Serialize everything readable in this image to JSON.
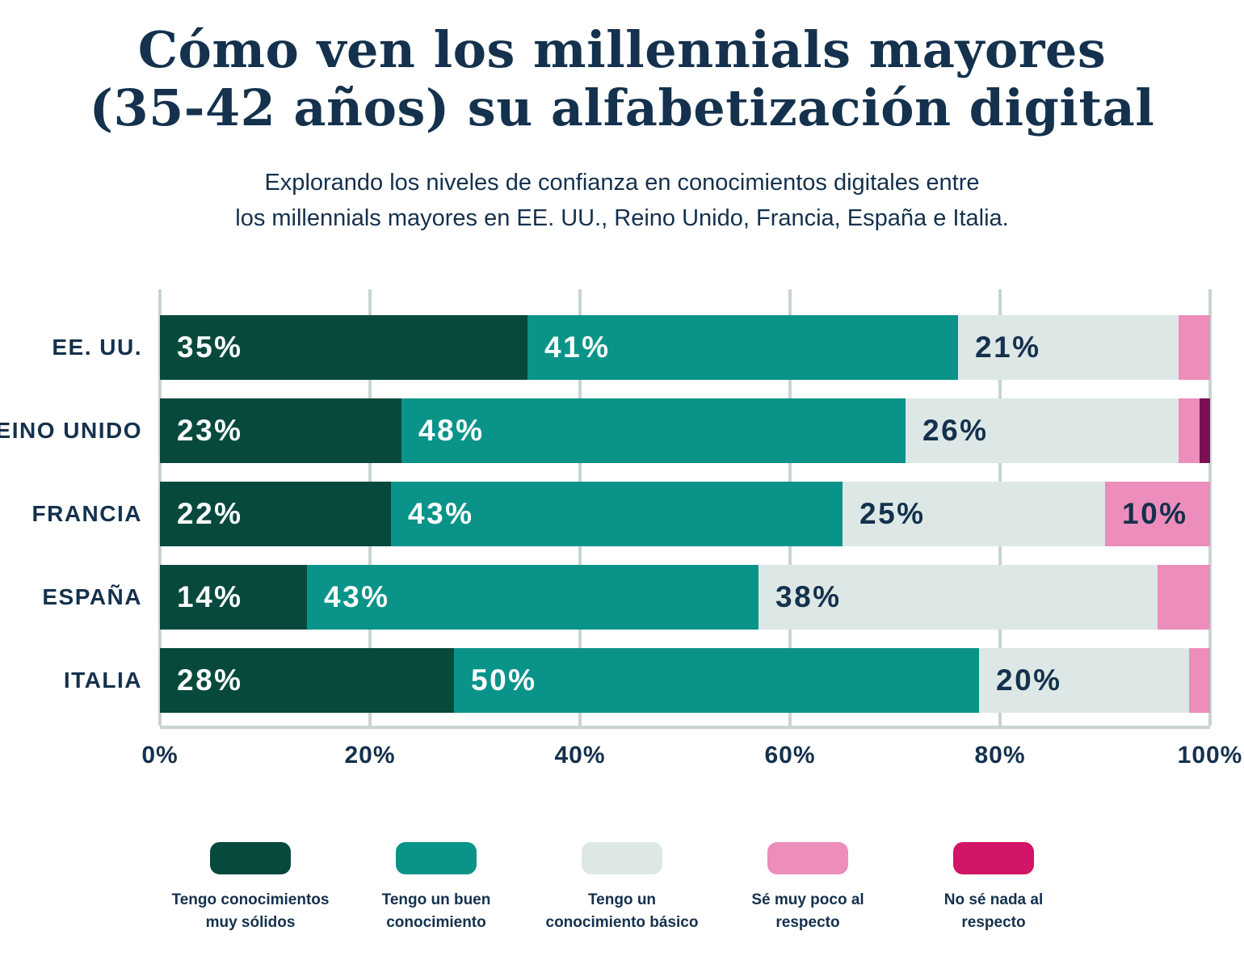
{
  "title": {
    "line1": "Cómo ven los millennials mayores",
    "line2": "(35-42 años) su alfabetización digital"
  },
  "subtitle": {
    "line1": "Explorando los niveles de confianza en conocimientos digitales entre",
    "line2": "los millennials mayores en EE. UU., Reino Unido, Francia, España e Italia."
  },
  "colors": {
    "background": "#FFFFFF",
    "text_navy": "#14314D",
    "gridline": "#C9D4D2",
    "dark_green": "#07493D",
    "teal": "#0A9489",
    "mint": "#DDE8E6",
    "pink": "#EC8DBB",
    "plum_bar": "#7B1052",
    "crimson_legend": "#D21566"
  },
  "chart_data": {
    "type": "bar",
    "stacked": true,
    "orientation": "horizontal",
    "title": "Cómo ven los millennials mayores (35-42 años) su alfabetización digital",
    "categories": [
      "EE. UU.",
      "REINO UNIDO",
      "FRANCIA",
      "ESPAÑA",
      "ITALIA"
    ],
    "series": [
      {
        "name": "Tengo conocimientos muy sólidos",
        "color": "#07493D",
        "label_color": "#FFFFFF",
        "values": [
          35,
          23,
          22,
          14,
          28
        ]
      },
      {
        "name": "Tengo un buen conocimiento",
        "color": "#0A9489",
        "label_color": "#FFFFFF",
        "values": [
          41,
          48,
          43,
          43,
          50
        ]
      },
      {
        "name": "Tengo un conocimiento básico",
        "color": "#DDE8E6",
        "label_color": "#14314D",
        "values": [
          21,
          26,
          25,
          38,
          20
        ]
      },
      {
        "name": "Sé muy poco al respecto",
        "color": "#EC8DBB",
        "label_color": "#14314D",
        "values": [
          3,
          2,
          10,
          5,
          2
        ]
      },
      {
        "name": "No sé nada al respecto",
        "color": "#7B1052",
        "label_color": "#FFFFFF",
        "values": [
          0,
          1,
          0,
          0,
          0
        ]
      }
    ],
    "value_suffix": "%",
    "label_threshold": 10,
    "x_ticks": [
      "0%",
      "20%",
      "40%",
      "60%",
      "80%",
      "100%"
    ],
    "xlim": [
      0,
      100
    ],
    "grid": true,
    "legend_position": "bottom"
  },
  "legend": {
    "items": [
      {
        "color": "#07493D",
        "lines": [
          "Tengo conocimientos",
          "muy sólidos"
        ]
      },
      {
        "color": "#0A9489",
        "lines": [
          "Tengo un buen",
          "conocimiento"
        ]
      },
      {
        "color": "#DDE8E6",
        "lines": [
          "Tengo un",
          "conocimiento básico"
        ]
      },
      {
        "color": "#EC8DBB",
        "lines": [
          "Sé muy poco al",
          "respecto"
        ]
      },
      {
        "color": "#D21566",
        "lines": [
          "No sé nada al",
          "respecto"
        ]
      }
    ]
  }
}
